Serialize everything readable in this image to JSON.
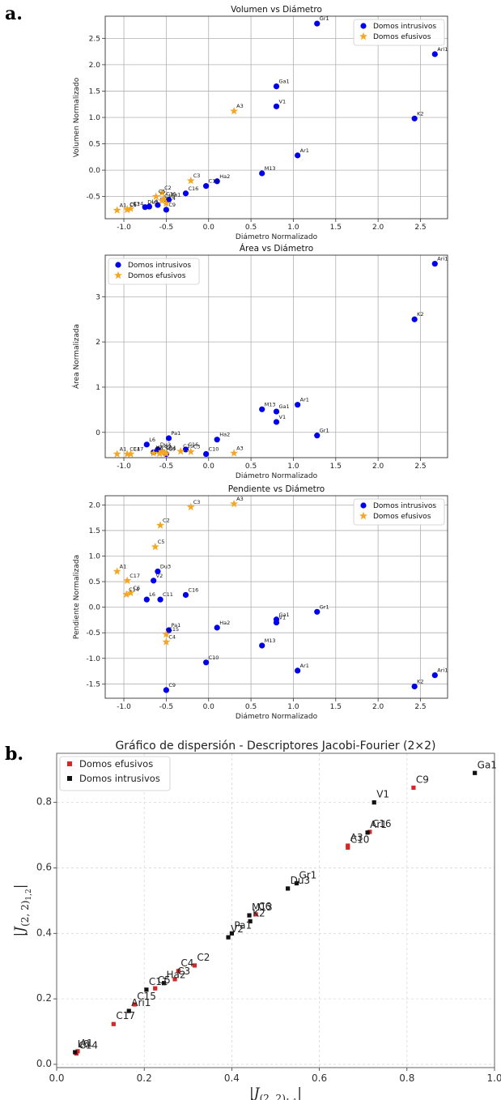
{
  "figure": {
    "panel_a_label": "a.",
    "panel_b_label": "b.",
    "colors": {
      "intrusive": "#0000ee",
      "effusive": "#f5a623",
      "jf_effusive": "#d62728",
      "jf_intrusive": "#111111"
    }
  },
  "chart_data": [
    {
      "type": "scatter",
      "title": "Volumen vs Diámetro",
      "xlabel": "Diámetro Normalizado",
      "ylabel": "Volumen Normalizado",
      "xlim": [
        -1.22,
        2.82
      ],
      "ylim": [
        -0.92,
        2.92
      ],
      "xticks": [
        "-1.0",
        "-0.5",
        "0.0",
        "0.5",
        "1.0",
        "1.5",
        "2.0",
        "2.5"
      ],
      "xtick_values": [
        -1.0,
        -0.5,
        0.0,
        0.5,
        1.0,
        1.5,
        2.0,
        2.5
      ],
      "yticks": [
        "-0.5",
        "0.0",
        "0.5",
        "1.0",
        "1.5",
        "2.0",
        "2.5"
      ],
      "ytick_values": [
        -0.5,
        0.0,
        0.5,
        1.0,
        1.5,
        2.0,
        2.5
      ],
      "grid": true,
      "legend_position": "top-right",
      "series": [
        {
          "name": "Domos intrusivos",
          "marker": "circle",
          "points": [
            {
              "label": "Gr1",
              "x": 1.28,
              "y": 2.78
            },
            {
              "label": "Ari1",
              "x": 2.67,
              "y": 2.2
            },
            {
              "label": "Ga1",
              "x": 0.8,
              "y": 1.59
            },
            {
              "label": "V1",
              "x": 0.8,
              "y": 1.21
            },
            {
              "label": "K2",
              "x": 2.43,
              "y": 0.98
            },
            {
              "label": "Ar1",
              "x": 1.05,
              "y": 0.28
            },
            {
              "label": "M13",
              "x": 0.63,
              "y": -0.06
            },
            {
              "label": "Ha2",
              "x": 0.1,
              "y": -0.21
            },
            {
              "label": "C10",
              "x": -0.03,
              "y": -0.3
            },
            {
              "label": "C16",
              "x": -0.27,
              "y": -0.44
            },
            {
              "label": "Pa1",
              "x": -0.47,
              "y": -0.56
            },
            {
              "label": "C9",
              "x": -0.5,
              "y": -0.75
            },
            {
              "label": "V2",
              "x": -0.6,
              "y": -0.66
            },
            {
              "label": "L6",
              "x": -0.7,
              "y": -0.69
            },
            {
              "label": "Du3",
              "x": -0.75,
              "y": -0.7
            }
          ]
        },
        {
          "name": "Domos efusivos",
          "marker": "star",
          "points": [
            {
              "label": "A3",
              "x": 0.3,
              "y": 1.12
            },
            {
              "label": "C3",
              "x": -0.21,
              "y": -0.2
            },
            {
              "label": "C2",
              "x": -0.55,
              "y": -0.43
            },
            {
              "label": "C5",
              "x": -0.62,
              "y": -0.5
            },
            {
              "label": "C11",
              "x": -0.53,
              "y": -0.54
            },
            {
              "label": "C15",
              "x": -0.55,
              "y": -0.58
            },
            {
              "label": "C4",
              "x": -0.5,
              "y": -0.63
            },
            {
              "label": "C14",
              "x": -0.92,
              "y": -0.73
            },
            {
              "label": "C17",
              "x": -0.96,
              "y": -0.74
            },
            {
              "label": "C6",
              "x": -0.96,
              "y": -0.75
            },
            {
              "label": "A1",
              "x": -1.08,
              "y": -0.76
            }
          ]
        }
      ]
    },
    {
      "type": "scatter",
      "title": "Área vs Diámetro",
      "xlabel": "Diámetro Normalizado",
      "ylabel": "Área Normalizada",
      "xlim": [
        -1.22,
        2.82
      ],
      "ylim": [
        -0.56,
        3.92
      ],
      "xticks": [
        "-1.0",
        "-0.5",
        "0.0",
        "0.5",
        "1.0",
        "1.5",
        "2.0",
        "2.5"
      ],
      "xtick_values": [
        -1.0,
        -0.5,
        0.0,
        0.5,
        1.0,
        1.5,
        2.0,
        2.5
      ],
      "yticks": [
        "0",
        "1",
        "2",
        "3"
      ],
      "ytick_values": [
        0,
        1,
        2,
        3
      ],
      "grid": true,
      "legend_position": "top-left",
      "series": [
        {
          "name": "Domos intrusivos",
          "marker": "circle",
          "points": [
            {
              "label": "Ari1",
              "x": 2.67,
              "y": 3.73
            },
            {
              "label": "K2",
              "x": 2.43,
              "y": 2.5
            },
            {
              "label": "Ar1",
              "x": 1.05,
              "y": 0.61
            },
            {
              "label": "M13",
              "x": 0.63,
              "y": 0.51
            },
            {
              "label": "Ga1",
              "x": 0.8,
              "y": 0.46
            },
            {
              "label": "V1",
              "x": 0.8,
              "y": 0.23
            },
            {
              "label": "Gr1",
              "x": 1.28,
              "y": -0.07
            },
            {
              "label": "Ha2",
              "x": 0.1,
              "y": -0.16
            },
            {
              "label": "Pa1",
              "x": -0.47,
              "y": -0.13
            },
            {
              "label": "L6",
              "x": -0.73,
              "y": -0.27
            },
            {
              "label": "Du3",
              "x": -0.6,
              "y": -0.38
            },
            {
              "label": "V2",
              "x": -0.65,
              "y": -0.44
            },
            {
              "label": "C16",
              "x": -0.27,
              "y": -0.38
            },
            {
              "label": "C10",
              "x": -0.03,
              "y": -0.48
            },
            {
              "label": "C9",
              "x": -0.5,
              "y": -0.48
            }
          ]
        },
        {
          "name": "Domos efusivos",
          "marker": "star",
          "points": [
            {
              "label": "A1",
              "x": -1.08,
              "y": -0.48
            },
            {
              "label": "C14",
              "x": -0.96,
              "y": -0.48
            },
            {
              "label": "C17",
              "x": -0.92,
              "y": -0.48
            },
            {
              "label": "C6",
              "x": -0.65,
              "y": -0.46
            },
            {
              "label": "C2",
              "x": -0.55,
              "y": -0.43
            },
            {
              "label": "C5",
              "x": -0.58,
              "y": -0.47
            },
            {
              "label": "C4",
              "x": -0.5,
              "y": -0.47
            },
            {
              "label": "C11",
              "x": -0.53,
              "y": -0.45
            },
            {
              "label": "C15",
              "x": -0.33,
              "y": -0.42
            },
            {
              "label": "C3",
              "x": -0.21,
              "y": -0.43
            },
            {
              "label": "A3",
              "x": 0.3,
              "y": -0.46
            }
          ]
        }
      ]
    },
    {
      "type": "scatter",
      "title": "Pendiente vs Diámetro",
      "xlabel": "Diámetro Normalizado",
      "ylabel": "Pendiente Normalizada",
      "xlim": [
        -1.22,
        2.82
      ],
      "ylim": [
        -1.78,
        2.18
      ],
      "xticks": [
        "-1.0",
        "-0.5",
        "0.0",
        "0.5",
        "1.0",
        "1.5",
        "2.0",
        "2.5"
      ],
      "xtick_values": [
        -1.0,
        -0.5,
        0.0,
        0.5,
        1.0,
        1.5,
        2.0,
        2.5
      ],
      "yticks": [
        "-1.5",
        "-1.0",
        "-0.5",
        "0.0",
        "0.5",
        "1.0",
        "1.5",
        "2.0"
      ],
      "ytick_values": [
        -1.5,
        -1.0,
        -0.5,
        0.0,
        0.5,
        1.0,
        1.5,
        2.0
      ],
      "grid": true,
      "legend_position": "top-right",
      "series": [
        {
          "name": "Domos intrusivos",
          "marker": "circle",
          "points": [
            {
              "label": "Du3",
              "x": -0.6,
              "y": 0.7
            },
            {
              "label": "V2",
              "x": -0.65,
              "y": 0.52
            },
            {
              "label": "L6",
              "x": -0.73,
              "y": 0.15
            },
            {
              "label": "C11",
              "x": -0.57,
              "y": 0.15
            },
            {
              "label": "C16",
              "x": -0.27,
              "y": 0.24
            },
            {
              "label": "Gr1",
              "x": 1.28,
              "y": -0.09
            },
            {
              "label": "Ga1",
              "x": 0.8,
              "y": -0.24
            },
            {
              "label": "V1",
              "x": 0.8,
              "y": -0.3
            },
            {
              "label": "Ha2",
              "x": 0.1,
              "y": -0.4
            },
            {
              "label": "Pa1",
              "x": -0.47,
              "y": -0.45
            },
            {
              "label": "M13",
              "x": 0.63,
              "y": -0.75
            },
            {
              "label": "C10",
              "x": -0.03,
              "y": -1.08
            },
            {
              "label": "Ar1",
              "x": 1.05,
              "y": -1.24
            },
            {
              "label": "Ari1",
              "x": 2.67,
              "y": -1.33
            },
            {
              "label": "K2",
              "x": 2.43,
              "y": -1.55
            },
            {
              "label": "C9",
              "x": -0.5,
              "y": -1.62
            }
          ]
        },
        {
          "name": "Domos efusivos",
          "marker": "star",
          "points": [
            {
              "label": "A3",
              "x": 0.3,
              "y": 2.02
            },
            {
              "label": "C3",
              "x": -0.21,
              "y": 1.96
            },
            {
              "label": "C2",
              "x": -0.57,
              "y": 1.6
            },
            {
              "label": "C5",
              "x": -0.63,
              "y": 1.18
            },
            {
              "label": "A1",
              "x": -1.08,
              "y": 0.7
            },
            {
              "label": "C17",
              "x": -0.96,
              "y": 0.52
            },
            {
              "label": "C6",
              "x": -0.92,
              "y": 0.28
            },
            {
              "label": "C14",
              "x": -0.97,
              "y": 0.25
            },
            {
              "label": "C15",
              "x": -0.5,
              "y": -0.53
            },
            {
              "label": "C4",
              "x": -0.5,
              "y": -0.68
            }
          ]
        }
      ]
    },
    {
      "type": "scatter",
      "title": "Gráfico de dispersión - Descriptores Jacobi-Fourier (2×2)",
      "xlabel": "|J_(2,2)1,1|",
      "ylabel": "|J_(2,2)1,2|",
      "xlim": [
        0.0,
        1.0
      ],
      "ylim": [
        -0.01,
        0.95
      ],
      "xticks": [
        "0.0",
        "0.2",
        "0.4",
        "0.6",
        "0.8",
        "1.0"
      ],
      "xtick_values": [
        0.0,
        0.2,
        0.4,
        0.6,
        0.8,
        1.0
      ],
      "yticks": [
        "0.0",
        "0.2",
        "0.4",
        "0.6",
        "0.8"
      ],
      "ytick_values": [
        0.0,
        0.2,
        0.4,
        0.6,
        0.8
      ],
      "grid": true,
      "legend_position": "top-left",
      "series": [
        {
          "name": "Domos efusivos",
          "marker": "square",
          "points": [
            {
              "label": "C9",
              "x": 0.815,
              "y": 0.845
            },
            {
              "label": "C16",
              "x": 0.715,
              "y": 0.71
            },
            {
              "label": "A3",
              "x": 0.665,
              "y": 0.668
            },
            {
              "label": "C10",
              "x": 0.665,
              "y": 0.662
            },
            {
              "label": "C6",
              "x": 0.455,
              "y": 0.458
            },
            {
              "label": "C2",
              "x": 0.315,
              "y": 0.302
            },
            {
              "label": "C4",
              "x": 0.278,
              "y": 0.285
            },
            {
              "label": "C3",
              "x": 0.27,
              "y": 0.26
            },
            {
              "label": "C5",
              "x": 0.225,
              "y": 0.232
            },
            {
              "label": "C15",
              "x": 0.178,
              "y": 0.183
            },
            {
              "label": "C17",
              "x": 0.13,
              "y": 0.123
            },
            {
              "label": "A1",
              "x": 0.048,
              "y": 0.04
            },
            {
              "label": "C14",
              "x": 0.045,
              "y": 0.033
            }
          ]
        },
        {
          "name": "Domos intrusivos",
          "marker": "square",
          "points": [
            {
              "label": "Ga1",
              "x": 0.955,
              "y": 0.89
            },
            {
              "label": "V1",
              "x": 0.725,
              "y": 0.8
            },
            {
              "label": "Ar1",
              "x": 0.71,
              "y": 0.708
            },
            {
              "label": "Gr1",
              "x": 0.548,
              "y": 0.553
            },
            {
              "label": "Du3",
              "x": 0.528,
              "y": 0.537
            },
            {
              "label": "M13",
              "x": 0.44,
              "y": 0.455
            },
            {
              "label": "K2",
              "x": 0.442,
              "y": 0.437
            },
            {
              "label": "Pa1",
              "x": 0.4,
              "y": 0.4
            },
            {
              "label": "V2",
              "x": 0.392,
              "y": 0.388
            },
            {
              "label": "Ha2",
              "x": 0.245,
              "y": 0.248
            },
            {
              "label": "C11",
              "x": 0.205,
              "y": 0.228
            },
            {
              "label": "Ari1",
              "x": 0.165,
              "y": 0.163
            },
            {
              "label": "L6",
              "x": 0.042,
              "y": 0.037
            }
          ]
        }
      ]
    }
  ]
}
